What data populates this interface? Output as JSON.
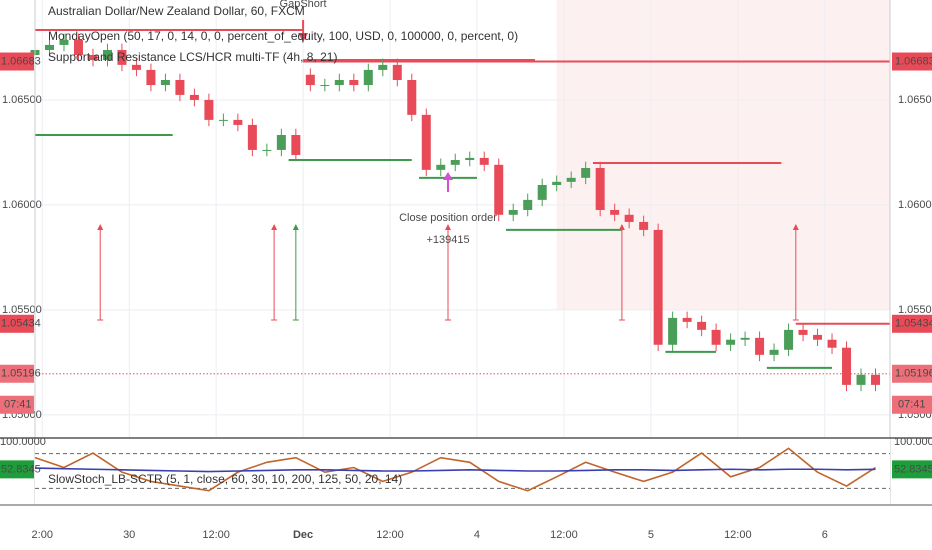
{
  "chart_data": {
    "type": "candlestick",
    "title": "Australian Dollar/New Zealand Dollar, 60, FXCM",
    "studies": [
      "MondayOpen (50, 17, 0, 14, 0, 0, percent_of_equity, 100, USD, 0, 100000, 0, percent, 0)",
      "Support and Resistance LCS/HCR multi-TF (4h, 8, 21)"
    ],
    "up_color": "#4a9e58",
    "down_color": "#e84b57",
    "x": [
      0,
      2,
      4,
      6,
      8,
      10,
      12,
      14,
      16,
      18,
      20,
      22,
      24,
      26,
      28,
      30,
      32,
      34,
      36,
      38,
      40,
      42,
      44,
      46,
      48,
      50,
      52,
      54,
      56,
      58,
      60,
      62,
      64,
      66,
      68,
      70,
      72,
      74,
      76,
      78,
      80,
      82,
      84,
      86,
      88,
      90,
      92,
      94,
      96,
      98,
      100,
      102,
      104,
      106,
      108,
      110,
      112,
      114,
      116
    ],
    "open": [
      1.06714,
      1.06738,
      1.06762,
      1.06786,
      1.06714,
      1.0669,
      1.06738,
      1.06667,
      1.06643,
      1.06571,
      1.06595,
      1.06524,
      1.065,
      1.06405,
      1.06405,
      1.06381,
      1.06262,
      1.06262,
      1.06333,
      1.0662,
      1.06571,
      1.06571,
      1.06595,
      1.06571,
      1.06643,
      1.06667,
      1.06595,
      1.06429,
      1.06167,
      1.06191,
      1.06214,
      1.06224,
      1.06191,
      1.05953,
      1.05976,
      1.06024,
      1.06095,
      1.0611,
      1.06129,
      1.06176,
      1.05976,
      1.05953,
      1.05919,
      1.05881,
      1.05334,
      1.05462,
      1.05443,
      1.05405,
      1.05334,
      1.05358,
      1.05367,
      1.05286,
      1.0531,
      1.05405,
      1.05381,
      1.05358,
      1.0532,
      1.05143,
      1.05191
    ],
    "high": [
      1.06768,
      1.06792,
      1.06816,
      1.06816,
      1.06744,
      1.06768,
      1.06768,
      1.06697,
      1.06673,
      1.06625,
      1.06625,
      1.06554,
      1.0653,
      1.06435,
      1.06435,
      1.06411,
      1.06292,
      1.06363,
      1.06363,
      1.0665,
      1.06601,
      1.06625,
      1.06625,
      1.06673,
      1.06697,
      1.06697,
      1.06625,
      1.06459,
      1.06221,
      1.06244,
      1.06254,
      1.06254,
      1.06221,
      1.06006,
      1.06054,
      1.06125,
      1.0614,
      1.06159,
      1.06206,
      1.06206,
      1.06006,
      1.05983,
      1.05949,
      1.05911,
      1.05492,
      1.05492,
      1.05473,
      1.05435,
      1.05388,
      1.05397,
      1.05397,
      1.0534,
      1.05435,
      1.05435,
      1.05411,
      1.05388,
      1.0535,
      1.05221,
      1.05221
    ],
    "low": [
      1.06684,
      1.06708,
      1.06732,
      1.06684,
      1.0666,
      1.0666,
      1.06637,
      1.06613,
      1.06541,
      1.06541,
      1.06494,
      1.0647,
      1.06375,
      1.06375,
      1.06351,
      1.06232,
      1.06232,
      1.06232,
      1.06208,
      1.06541,
      1.06541,
      1.06541,
      1.06541,
      1.06541,
      1.06613,
      1.06565,
      1.06399,
      1.06137,
      1.06137,
      1.06161,
      1.06184,
      1.06161,
      1.05923,
      1.05923,
      1.05946,
      1.05994,
      1.06065,
      1.0608,
      1.06099,
      1.05946,
      1.05923,
      1.05889,
      1.05851,
      1.05304,
      1.05304,
      1.05413,
      1.05375,
      1.05304,
      1.05304,
      1.05328,
      1.05256,
      1.05256,
      1.0528,
      1.05351,
      1.05328,
      1.0529,
      1.05113,
      1.05113,
      1.05113
    ],
    "close": [
      1.06738,
      1.06762,
      1.06786,
      1.06714,
      1.0669,
      1.06738,
      1.06667,
      1.06643,
      1.06571,
      1.06595,
      1.06524,
      1.065,
      1.06405,
      1.06405,
      1.06381,
      1.06262,
      1.06262,
      1.06333,
      1.06238,
      1.06571,
      1.06571,
      1.06595,
      1.06571,
      1.06643,
      1.06667,
      1.06595,
      1.06429,
      1.06167,
      1.06191,
      1.06214,
      1.06224,
      1.06191,
      1.05953,
      1.05976,
      1.06024,
      1.06095,
      1.0611,
      1.06129,
      1.06176,
      1.05976,
      1.05953,
      1.05919,
      1.05881,
      1.05334,
      1.05462,
      1.05443,
      1.05405,
      1.05334,
      1.05358,
      1.05367,
      1.05286,
      1.0531,
      1.05405,
      1.05381,
      1.05358,
      1.0532,
      1.05143,
      1.05191,
      1.05143
    ],
    "xlim": [
      0,
      118
    ],
    "ylim": [
      1.0489,
      1.06976
    ],
    "yticks": [
      {
        "value": 1.05,
        "label": "1.05000"
      },
      {
        "value": 1.055,
        "label": "1.05500"
      },
      {
        "value": 1.06,
        "label": "1.06000"
      },
      {
        "value": 1.065,
        "label": "1.06500"
      }
    ],
    "xticks": [
      {
        "value": 1,
        "label": "2:00"
      },
      {
        "value": 13,
        "label": "30"
      },
      {
        "value": 25,
        "label": "12:00"
      },
      {
        "value": 37,
        "label": "Dec"
      },
      {
        "value": 49,
        "label": "12:00"
      },
      {
        "value": 61,
        "label": "4"
      },
      {
        "value": 73,
        "label": "12:00"
      },
      {
        "value": 85,
        "label": "5"
      },
      {
        "value": 97,
        "label": "12:00"
      },
      {
        "value": 109,
        "label": "6"
      }
    ],
    "grid": true,
    "shade": {
      "x": [
        72,
        118
      ],
      "y": [
        1.055,
        1.06976
      ],
      "color": "#fdf0f1"
    },
    "levels": [
      {
        "value": 1.06833,
        "x": [
          0,
          37
        ],
        "color": "#e84b57"
      },
      {
        "value": 1.0669,
        "x": [
          37,
          69
        ],
        "color": "#e84b57"
      },
      {
        "value": 1.06683,
        "x": [
          37,
          118
        ],
        "color": "#e84b57",
        "tag": true
      },
      {
        "value": 1.06333,
        "x": [
          0,
          19
        ],
        "color": "#3d9a4a"
      },
      {
        "value": 1.06214,
        "x": [
          35,
          52
        ],
        "color": "#3d9a4a"
      },
      {
        "value": 1.06129,
        "x": [
          53,
          61
        ],
        "color": "#3d9a4a"
      },
      {
        "value": 1.05881,
        "x": [
          65,
          81
        ],
        "color": "#3d9a4a"
      },
      {
        "value": 1.062,
        "x": [
          77,
          103
        ],
        "color": "#e84b57"
      },
      {
        "value": 1.053,
        "x": [
          87,
          94
        ],
        "color": "#3d9a4a"
      },
      {
        "value": 1.05224,
        "x": [
          101,
          110
        ],
        "color": "#3d9a4a"
      },
      {
        "value": 1.05434,
        "x": [
          105,
          118
        ],
        "color": "#e84b57",
        "tag": true
      },
      {
        "value": 1.05196,
        "x": [
          0,
          118
        ],
        "color": "#ec6f79",
        "tag": true,
        "style": "dotted"
      }
    ],
    "countdown": "07:41",
    "signals": [
      {
        "x": 9,
        "color": "#e84b57"
      },
      {
        "x": 33,
        "color": "#e84b57"
      },
      {
        "x": 36,
        "color": "#3d9a4a"
      },
      {
        "x": 57,
        "color": "#e84b57"
      },
      {
        "x": 81,
        "color": "#e84b57"
      },
      {
        "x": 105,
        "color": "#e84b57"
      }
    ],
    "annotations": [
      {
        "text": "GapShort",
        "x": 37,
        "color": "#e84b57"
      },
      {
        "text": "Close position order",
        "x": 57,
        "color": "#d54fd6"
      },
      {
        "text": "+139415",
        "x": 57,
        "color": "#d54fd6"
      }
    ],
    "oscillator": {
      "title": "SlowStoch_LB-SCTR (5, 1, close, 60, 30, 10, 200, 125, 50, 20, 14)",
      "x": [
        0,
        4,
        8,
        12,
        16,
        20,
        24,
        28,
        32,
        36,
        40,
        44,
        48,
        52,
        56,
        60,
        64,
        68,
        72,
        76,
        80,
        84,
        88,
        92,
        96,
        100,
        104,
        108,
        112,
        116
      ],
      "lines": [
        {
          "color": "#c0652b",
          "values": [
            73,
            56,
            81,
            48,
            32,
            24,
            16,
            48,
            65,
            73,
            48,
            56,
            32,
            48,
            73,
            65,
            32,
            16,
            40,
            65,
            48,
            32,
            48,
            81,
            40,
            56,
            89,
            48,
            24,
            56
          ]
        },
        {
          "color": "#3a3fb0",
          "values": [
            55,
            54,
            53,
            52,
            51,
            50,
            49,
            50,
            51,
            52,
            52,
            51,
            50,
            50,
            51,
            52,
            51,
            50,
            50,
            51,
            52,
            52,
            51,
            52,
            53,
            52,
            53,
            53,
            52,
            52.8345
          ]
        }
      ],
      "ylim": [
        0,
        100
      ],
      "yticks": [
        {
          "value": 100,
          "label": "100.0000"
        }
      ],
      "levels": [
        80,
        20
      ],
      "tag_color": "#1e9e3a"
    }
  }
}
